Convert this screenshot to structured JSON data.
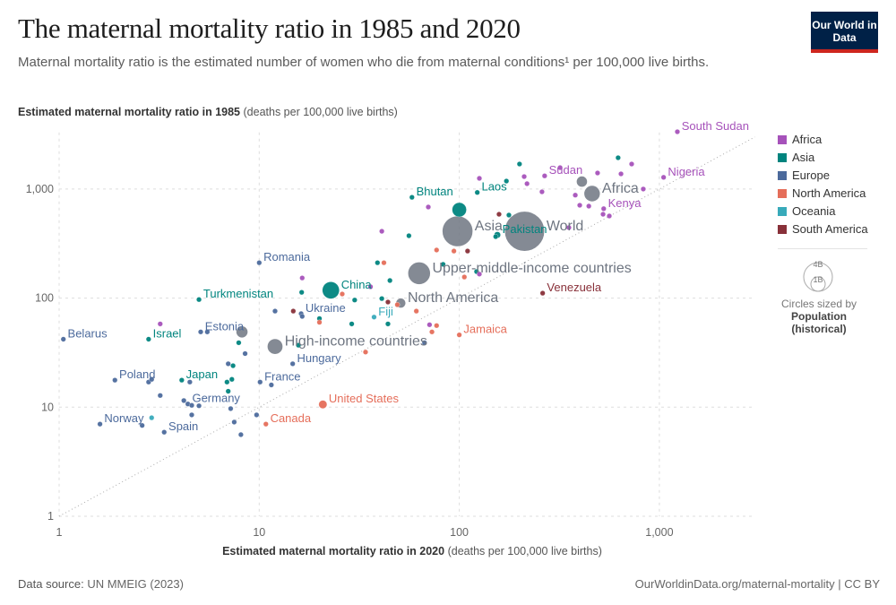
{
  "header": {
    "title": "The maternal mortality ratio in 1985 and 2020",
    "subtitle": "Maternal mortality ratio is the estimated number of women who die from maternal conditions¹ per 100,000 live births.",
    "logo_text": "Our World in Data"
  },
  "footer": {
    "source_label": "Data source:",
    "source_value": "UN MMEIG (2023)",
    "credit": "OurWorldinData.org/maternal-mortality | CC BY"
  },
  "legend": {
    "items": [
      {
        "label": "Africa",
        "color": "#a652ba"
      },
      {
        "label": "Asia",
        "color": "#00847e"
      },
      {
        "label": "Europe",
        "color": "#4c6a9c"
      },
      {
        "label": "North America",
        "color": "#e56e5a"
      },
      {
        "label": "Oceania",
        "color": "#38aaba"
      },
      {
        "label": "South America",
        "color": "#883039"
      }
    ],
    "size_big": "4B",
    "size_small": "1B",
    "size_caption": "Circles sized by",
    "size_var": "Population",
    "size_var2": "(historical)"
  },
  "chart_data": {
    "type": "scatter",
    "title": "The maternal mortality ratio in 1985 and 2020",
    "xlabel_bold": "Estimated maternal mortality ratio in 2020",
    "xlabel_unit": "(deaths per 100,000 live births)",
    "ylabel_bold": "Estimated maternal mortality ratio in 1985",
    "ylabel_unit": "(deaths per 100,000 live births)",
    "x_scale": "log",
    "y_scale": "log",
    "xlim": [
      1,
      3000
    ],
    "ylim": [
      1,
      3300
    ],
    "x_ticks": [
      "1",
      "10",
      "100",
      "1,000"
    ],
    "y_ticks": [
      "1",
      "10",
      "100",
      "1,000"
    ],
    "x_tick_values": [
      1,
      10,
      100,
      1000
    ],
    "y_tick_values": [
      1,
      10,
      100,
      1000
    ],
    "grid": true,
    "diagonal_reference_line": "y = x",
    "legend_placement": "right",
    "aggregate_color": "#6e7581",
    "points": [
      {
        "entity": "South Sudan",
        "region": "Africa",
        "x": 1230,
        "y": 3350,
        "label": true
      },
      {
        "entity": "Nigeria",
        "region": "Africa",
        "x": 1050,
        "y": 1280,
        "label": true
      },
      {
        "entity": "Sudan",
        "region": "Africa",
        "x": 267,
        "y": 1320,
        "label": true
      },
      {
        "entity": "Kenya",
        "region": "Africa",
        "x": 527,
        "y": 660,
        "label": true
      },
      {
        "entity": "Bhutan",
        "region": "Asia",
        "x": 58,
        "y": 840,
        "label": true
      },
      {
        "entity": "Laos",
        "region": "Asia",
        "x": 123,
        "y": 930,
        "label": true
      },
      {
        "entity": "Pakistan",
        "region": "Asia",
        "x": 155,
        "y": 380,
        "pop": 0.2,
        "label": true
      },
      {
        "entity": "China",
        "region": "Asia",
        "x": 22.8,
        "y": 118,
        "pop": 1.4,
        "label": true
      },
      {
        "entity": "Turkmenistan",
        "region": "Asia",
        "x": 5,
        "y": 97,
        "label": true
      },
      {
        "entity": "Israel",
        "region": "Asia",
        "x": 2.8,
        "y": 42,
        "label": true
      },
      {
        "entity": "Japan",
        "region": "Asia",
        "x": 4.1,
        "y": 17.7,
        "label": true
      },
      {
        "entity": "Romania",
        "region": "Europe",
        "x": 10,
        "y": 211,
        "label": true
      },
      {
        "entity": "Ukraine",
        "region": "Europe",
        "x": 16.2,
        "y": 72,
        "label": true
      },
      {
        "entity": "Estonia",
        "region": "Europe",
        "x": 5.1,
        "y": 49,
        "label": true
      },
      {
        "entity": "Belarus",
        "region": "Europe",
        "x": 1.05,
        "y": 42,
        "label": true
      },
      {
        "entity": "Hungary",
        "region": "Europe",
        "x": 14.7,
        "y": 25,
        "label": true
      },
      {
        "entity": "Poland",
        "region": "Europe",
        "x": 1.9,
        "y": 17.7,
        "label": true
      },
      {
        "entity": "France",
        "region": "Europe",
        "x": 10.1,
        "y": 17,
        "label": true
      },
      {
        "entity": "Germany",
        "region": "Europe",
        "x": 4.4,
        "y": 10.7,
        "label": true
      },
      {
        "entity": "Norway",
        "region": "Europe",
        "x": 1.6,
        "y": 7,
        "label": true
      },
      {
        "entity": "Spain",
        "region": "Europe",
        "x": 3.35,
        "y": 5.9,
        "label": true
      },
      {
        "entity": "United States",
        "region": "North America",
        "x": 20.8,
        "y": 10.6,
        "pop": 0.33,
        "label": true
      },
      {
        "entity": "Canada",
        "region": "North America",
        "x": 10.8,
        "y": 7,
        "label": true
      },
      {
        "entity": "Jamaica",
        "region": "North America",
        "x": 100,
        "y": 46,
        "label": true
      },
      {
        "entity": "Fiji",
        "region": "Oceania",
        "x": 37.5,
        "y": 67,
        "label": true
      },
      {
        "entity": "Venezuela",
        "region": "South America",
        "x": 261,
        "y": 111,
        "label": true
      },
      {
        "entity": "World",
        "region": "aggregate",
        "x": 212,
        "y": 410,
        "pop": 7.8,
        "label": true
      },
      {
        "entity": "Asia",
        "region": "aggregate",
        "x": 98,
        "y": 410,
        "pop": 4.6,
        "label": true
      },
      {
        "entity": "Africa",
        "region": "aggregate",
        "x": 461,
        "y": 908,
        "pop": 1.3,
        "label": true
      },
      {
        "entity": "Upper-middle-income countries",
        "region": "aggregate",
        "x": 63,
        "y": 169,
        "pop": 2.5,
        "label": true
      },
      {
        "entity": "North America",
        "region": "aggregate",
        "x": 51,
        "y": 90,
        "pop": 0.5,
        "label": true
      },
      {
        "entity": "High-income countries",
        "region": "aggregate",
        "x": 12,
        "y": 36,
        "pop": 1.2,
        "label": true
      },
      {
        "region": "aggregate",
        "x": 410,
        "y": 1170,
        "pop": 0.6
      },
      {
        "region": "aggregate",
        "x": 8.2,
        "y": 49,
        "pop": 0.7
      },
      {
        "region": "Asia",
        "x": 100,
        "y": 646,
        "pop": 1.0
      },
      {
        "region": "Asia",
        "x": 622,
        "y": 1935
      },
      {
        "region": "Africa",
        "x": 727,
        "y": 1695
      },
      {
        "region": "Asia",
        "x": 200,
        "y": 1695
      },
      {
        "region": "Africa",
        "x": 831,
        "y": 1000
      },
      {
        "region": "Africa",
        "x": 319,
        "y": 1571
      },
      {
        "region": "Africa",
        "x": 491,
        "y": 1403
      },
      {
        "region": "Africa",
        "x": 643,
        "y": 1377
      },
      {
        "region": "Africa",
        "x": 126,
        "y": 1253
      },
      {
        "region": "Asia",
        "x": 172,
        "y": 1183
      },
      {
        "region": "Africa",
        "x": 211,
        "y": 1300
      },
      {
        "region": "Africa",
        "x": 218,
        "y": 1119
      },
      {
        "region": "Africa",
        "x": 259,
        "y": 943
      },
      {
        "region": "Africa",
        "x": 70,
        "y": 684
      },
      {
        "region": "South America",
        "x": 158,
        "y": 587
      },
      {
        "region": "Asia",
        "x": 177,
        "y": 577
      },
      {
        "region": "Africa",
        "x": 380,
        "y": 879
      },
      {
        "region": "Africa",
        "x": 400,
        "y": 710
      },
      {
        "region": "Africa",
        "x": 444,
        "y": 697
      },
      {
        "region": "Africa",
        "x": 523,
        "y": 587
      },
      {
        "region": "Africa",
        "x": 562,
        "y": 566
      },
      {
        "region": "Africa",
        "x": 353,
        "y": 443
      },
      {
        "region": "Asia",
        "x": 152,
        "y": 366
      },
      {
        "region": "Africa",
        "x": 41,
        "y": 410
      },
      {
        "region": "Asia",
        "x": 56,
        "y": 373
      },
      {
        "region": "Asia",
        "x": 39,
        "y": 211
      },
      {
        "region": "North America",
        "x": 42,
        "y": 211
      },
      {
        "region": "Asia",
        "x": 45,
        "y": 145
      },
      {
        "region": "Africa",
        "x": 36,
        "y": 127
      },
      {
        "region": "North America",
        "x": 77,
        "y": 276
      },
      {
        "region": "North America",
        "x": 94,
        "y": 270
      },
      {
        "region": "South America",
        "x": 110,
        "y": 270
      },
      {
        "region": "Asia",
        "x": 83,
        "y": 204
      },
      {
        "region": "Asia",
        "x": 122,
        "y": 175
      },
      {
        "region": "North America",
        "x": 106,
        "y": 156
      },
      {
        "region": "Africa",
        "x": 126,
        "y": 166
      },
      {
        "region": "Africa",
        "x": 16.4,
        "y": 153
      },
      {
        "region": "Asia",
        "x": 16.3,
        "y": 113
      },
      {
        "region": "North America",
        "x": 26,
        "y": 109
      },
      {
        "region": "Europe",
        "x": 12,
        "y": 76
      },
      {
        "region": "South America",
        "x": 14.8,
        "y": 76
      },
      {
        "region": "Europe",
        "x": 16.4,
        "y": 68
      },
      {
        "region": "Asia",
        "x": 20,
        "y": 65
      },
      {
        "region": "Asia",
        "x": 30,
        "y": 96
      },
      {
        "region": "Asia",
        "x": 41,
        "y": 99
      },
      {
        "region": "South America",
        "x": 44,
        "y": 92
      },
      {
        "region": "North America",
        "x": 49,
        "y": 87
      },
      {
        "region": "North America",
        "x": 61,
        "y": 76
      },
      {
        "region": "Asia",
        "x": 44,
        "y": 58
      },
      {
        "region": "Africa",
        "x": 71,
        "y": 57
      },
      {
        "region": "North America",
        "x": 77,
        "y": 56
      },
      {
        "region": "North America",
        "x": 73,
        "y": 49
      },
      {
        "region": "Europe",
        "x": 67,
        "y": 39
      },
      {
        "region": "North America",
        "x": 34,
        "y": 32
      },
      {
        "region": "Asia",
        "x": 29,
        "y": 58
      },
      {
        "region": "North America",
        "x": 20,
        "y": 60
      },
      {
        "region": "Asia",
        "x": 15.7,
        "y": 37
      },
      {
        "region": "Europe",
        "x": 8.5,
        "y": 31
      },
      {
        "region": "Asia",
        "x": 7.9,
        "y": 39
      },
      {
        "region": "Europe",
        "x": 7,
        "y": 25
      },
      {
        "region": "Asia",
        "x": 7.4,
        "y": 24
      },
      {
        "region": "Europe",
        "x": 11.5,
        "y": 16
      },
      {
        "region": "Asia",
        "x": 6.9,
        "y": 17
      },
      {
        "region": "Asia",
        "x": 7.3,
        "y": 18
      },
      {
        "region": "Europe",
        "x": 2.8,
        "y": 17
      },
      {
        "region": "Europe",
        "x": 2.9,
        "y": 18
      },
      {
        "region": "Europe",
        "x": 3.2,
        "y": 12.8
      },
      {
        "region": "Europe",
        "x": 4.5,
        "y": 17
      },
      {
        "region": "Europe",
        "x": 4.2,
        "y": 11.5
      },
      {
        "region": "Europe",
        "x": 4.6,
        "y": 10.4
      },
      {
        "region": "Europe",
        "x": 5.0,
        "y": 10.3
      },
      {
        "region": "Europe",
        "x": 7.2,
        "y": 9.7
      },
      {
        "region": "Asia",
        "x": 7.0,
        "y": 14
      },
      {
        "region": "Europe",
        "x": 4.6,
        "y": 8.5
      },
      {
        "region": "Europe",
        "x": 7.5,
        "y": 7.3
      },
      {
        "region": "Europe",
        "x": 8.1,
        "y": 5.6
      },
      {
        "region": "Europe",
        "x": 9.7,
        "y": 8.5
      },
      {
        "region": "Oceania",
        "x": 2.9,
        "y": 8.0
      },
      {
        "region": "Europe",
        "x": 2.6,
        "y": 6.8
      },
      {
        "region": "Europe",
        "x": 5.5,
        "y": 49
      },
      {
        "region": "Africa",
        "x": 3.2,
        "y": 58
      }
    ]
  }
}
